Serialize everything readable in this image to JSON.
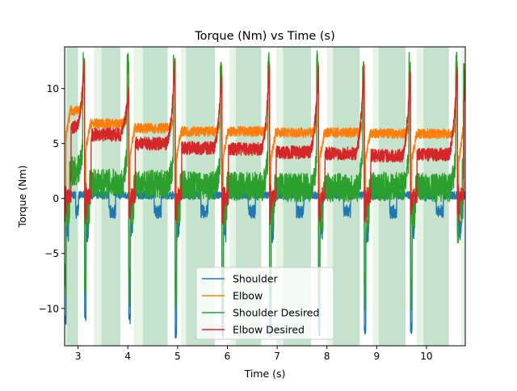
{
  "chart_data": {
    "type": "line",
    "title": "Torque (Nm) vs Time (s)",
    "xlabel": "Time (s)",
    "ylabel": "Torque (Nm)",
    "xlim": [
      2.73,
      10.78
    ],
    "ylim": [
      -13.4,
      13.8
    ],
    "xticks": [
      3,
      4,
      5,
      6,
      7,
      8,
      9,
      10
    ],
    "yticks": [
      -10,
      -5,
      0,
      5,
      10
    ],
    "grid": false,
    "legend_position": "lower center",
    "colors": {
      "Shoulder": "#1f77b4",
      "Elbow": "#ff7f0e",
      "Shoulder Desired": "#2ca02c",
      "Elbow Desired": "#d62728",
      "shade_light": "#e6f4e6",
      "shade_dark": "#c5e3cc"
    },
    "shaded_regions": [
      {
        "start": 2.73,
        "end": 2.77,
        "tone": "light"
      },
      {
        "start": 2.77,
        "end": 3.0,
        "tone": "dark"
      },
      {
        "start": 3.32,
        "end": 3.47,
        "tone": "light"
      },
      {
        "start": 3.47,
        "end": 3.85,
        "tone": "dark"
      },
      {
        "start": 4.12,
        "end": 4.3,
        "tone": "light"
      },
      {
        "start": 4.3,
        "end": 4.8,
        "tone": "dark"
      },
      {
        "start": 5.07,
        "end": 5.17,
        "tone": "light"
      },
      {
        "start": 5.17,
        "end": 5.75,
        "tone": "dark"
      },
      {
        "start": 6.04,
        "end": 6.17,
        "tone": "light"
      },
      {
        "start": 6.17,
        "end": 6.68,
        "tone": "dark"
      },
      {
        "start": 6.98,
        "end": 7.12,
        "tone": "light"
      },
      {
        "start": 7.12,
        "end": 7.68,
        "tone": "dark"
      },
      {
        "start": 8.0,
        "end": 8.12,
        "tone": "light"
      },
      {
        "start": 8.12,
        "end": 8.66,
        "tone": "dark"
      },
      {
        "start": 8.92,
        "end": 9.04,
        "tone": "light"
      },
      {
        "start": 9.04,
        "end": 9.58,
        "tone": "dark"
      },
      {
        "start": 9.8,
        "end": 9.94,
        "tone": "light"
      },
      {
        "start": 9.94,
        "end": 10.45,
        "tone": "dark"
      },
      {
        "start": 10.7,
        "end": 10.78,
        "tone": "light"
      }
    ],
    "cycles": [
      {
        "start": 2.73,
        "end": 3.13,
        "elbow": 8.0,
        "shoulder_desired": 2.5,
        "elbow_desired": 6.5,
        "elbow_peak": 11.5,
        "sd_peak": 12.0,
        "ed_peak": 12.0,
        "neg_peak": -11.0
      },
      {
        "start": 3.13,
        "end": 4.02,
        "elbow": 6.8,
        "shoulder_desired": 1.4,
        "elbow_desired": 5.8,
        "elbow_peak": 12.0,
        "sd_peak": 12.0,
        "ed_peak": 10.0,
        "neg_peak": -10.8
      },
      {
        "start": 4.02,
        "end": 4.95,
        "elbow": 6.4,
        "shoulder_desired": 1.3,
        "elbow_desired": 5.0,
        "elbow_peak": 12.0,
        "sd_peak": 12.0,
        "ed_peak": 12.3,
        "neg_peak": -11.0
      },
      {
        "start": 4.95,
        "end": 5.89,
        "elbow": 6.1,
        "shoulder_desired": 1.2,
        "elbow_desired": 4.6,
        "elbow_peak": 12.0,
        "sd_peak": 11.3,
        "ed_peak": 11.3,
        "neg_peak": -12.2
      },
      {
        "start": 5.89,
        "end": 6.85,
        "elbow": 6.1,
        "shoulder_desired": 1.1,
        "elbow_desired": 4.5,
        "elbow_peak": 12.0,
        "sd_peak": 12.0,
        "ed_peak": 12.3,
        "neg_peak": -12.2
      },
      {
        "start": 5.89,
        "end": 5.89,
        "elbow": 6.1,
        "shoulder_desired": 1.1,
        "elbow_desired": 4.5,
        "elbow_peak": 12.0,
        "sd_peak": 12.0,
        "ed_peak": 12.3,
        "neg_peak": -12.2
      },
      {
        "start": 6.85,
        "end": 7.83,
        "elbow": 6.0,
        "shoulder_desired": 1.0,
        "elbow_desired": 4.2,
        "elbow_peak": 12.0,
        "sd_peak": 12.3,
        "ed_peak": 11.6,
        "neg_peak": -12.2
      },
      {
        "start": 7.83,
        "end": 8.75,
        "elbow": 6.0,
        "shoulder_desired": 1.0,
        "elbow_desired": 4.1,
        "elbow_peak": 12.0,
        "sd_peak": 12.0,
        "ed_peak": 12.0,
        "neg_peak": -12.0
      },
      {
        "start": 8.75,
        "end": 9.68,
        "elbow": 5.9,
        "shoulder_desired": 1.1,
        "elbow_desired": 3.9,
        "elbow_peak": 12.0,
        "sd_peak": 12.0,
        "ed_peak": 11.5,
        "neg_peak": -12.0
      },
      {
        "start": 9.68,
        "end": 10.62,
        "elbow": 5.9,
        "shoulder_desired": 1.0,
        "elbow_desired": 4.0,
        "elbow_peak": 12.0,
        "sd_peak": 12.1,
        "ed_peak": 11.8,
        "neg_peak": -11.8
      },
      {
        "start": 10.62,
        "end": 10.78,
        "elbow": 5.8,
        "shoulder_desired": 1.0,
        "elbow_desired": 3.8,
        "elbow_peak": 12.0,
        "sd_peak": 11.0,
        "ed_peak": 11.0,
        "neg_peak": -3.0
      }
    ],
    "series": [
      {
        "name": "Shoulder"
      },
      {
        "name": "Elbow"
      },
      {
        "name": "Shoulder Desired"
      },
      {
        "name": "Elbow Desired"
      }
    ]
  }
}
